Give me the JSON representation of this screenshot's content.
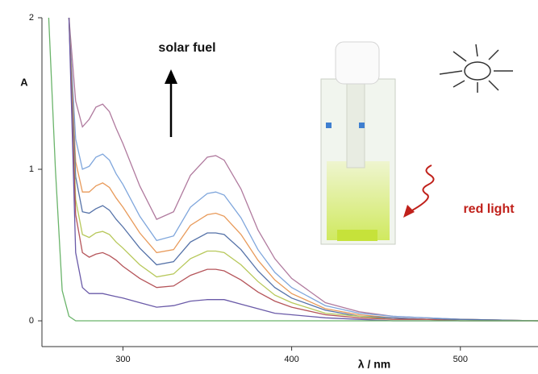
{
  "chart_data": {
    "type": "line",
    "annotations": {
      "solar": "solar fuel",
      "red": "red light"
    },
    "ylabel": "A",
    "xlabel": "λ / nm",
    "x": [
      256,
      260,
      264,
      268,
      272,
      276,
      280,
      284,
      288,
      292,
      296,
      300,
      310,
      320,
      330,
      340,
      350,
      355,
      360,
      370,
      380,
      390,
      400,
      420,
      440,
      460,
      480,
      500,
      546
    ],
    "series": [
      {
        "color": "#b07a9e",
        "values": [
          null,
          null,
          null,
          2.0,
          1.45,
          1.28,
          1.33,
          1.41,
          1.43,
          1.38,
          1.27,
          1.17,
          0.89,
          0.67,
          0.72,
          0.96,
          1.08,
          1.09,
          1.06,
          0.87,
          0.6,
          0.41,
          0.28,
          0.12,
          0.06,
          0.03,
          0.02,
          0.01,
          0
        ]
      },
      {
        "color": "#7fa6dc",
        "values": [
          null,
          null,
          null,
          2.0,
          1.2,
          1.0,
          1.02,
          1.08,
          1.1,
          1.06,
          0.97,
          0.9,
          0.69,
          0.53,
          0.56,
          0.75,
          0.84,
          0.85,
          0.83,
          0.68,
          0.47,
          0.32,
          0.22,
          0.1,
          0.05,
          0.03,
          0.02,
          0.01,
          0
        ]
      },
      {
        "color": "#e89a5a",
        "values": [
          null,
          null,
          null,
          2.0,
          1.05,
          0.85,
          0.85,
          0.89,
          0.91,
          0.88,
          0.81,
          0.75,
          0.58,
          0.45,
          0.47,
          0.63,
          0.7,
          0.71,
          0.69,
          0.57,
          0.4,
          0.27,
          0.18,
          0.08,
          0.04,
          0.02,
          0.01,
          0.01,
          0
        ]
      },
      {
        "color": "#5572a8",
        "values": [
          null,
          null,
          null,
          2.0,
          0.95,
          0.72,
          0.71,
          0.74,
          0.76,
          0.73,
          0.67,
          0.62,
          0.48,
          0.37,
          0.39,
          0.52,
          0.58,
          0.58,
          0.57,
          0.47,
          0.33,
          0.22,
          0.15,
          0.07,
          0.03,
          0.02,
          0.01,
          0.01,
          0
        ]
      },
      {
        "color": "#b7c85a",
        "values": [
          null,
          null,
          null,
          2.0,
          0.8,
          0.57,
          0.55,
          0.58,
          0.59,
          0.57,
          0.52,
          0.48,
          0.37,
          0.29,
          0.31,
          0.41,
          0.46,
          0.46,
          0.45,
          0.37,
          0.26,
          0.17,
          0.12,
          0.05,
          0.03,
          0.01,
          0.01,
          0,
          0
        ]
      },
      {
        "color": "#b5555a",
        "values": [
          null,
          null,
          null,
          2.0,
          0.7,
          0.45,
          0.42,
          0.44,
          0.45,
          0.43,
          0.4,
          0.36,
          0.28,
          0.22,
          0.23,
          0.3,
          0.34,
          0.34,
          0.33,
          0.27,
          0.19,
          0.13,
          0.09,
          0.04,
          0.02,
          0.01,
          0.01,
          0,
          0
        ]
      },
      {
        "color": "#6a5aa8",
        "values": [
          null,
          null,
          null,
          2.0,
          0.45,
          0.22,
          0.18,
          0.18,
          0.18,
          0.17,
          0.16,
          0.15,
          0.12,
          0.09,
          0.1,
          0.13,
          0.14,
          0.14,
          0.14,
          0.11,
          0.08,
          0.05,
          0.04,
          0.02,
          0.01,
          0,
          0,
          0,
          0
        ]
      },
      {
        "color": "#6ab46a",
        "values": [
          2.0,
          1.0,
          0.2,
          0.03,
          0,
          0,
          0,
          0,
          0,
          0,
          0,
          0,
          0,
          0,
          0,
          0,
          0,
          0,
          0,
          0,
          0,
          0,
          0,
          0,
          0,
          0,
          0,
          0,
          0
        ]
      }
    ],
    "xlim": [
      252,
      546
    ],
    "ylim": [
      -0.17,
      2
    ],
    "xticks": [
      300,
      400,
      500
    ],
    "yticks": [
      0,
      1,
      2
    ],
    "grid": false
  }
}
